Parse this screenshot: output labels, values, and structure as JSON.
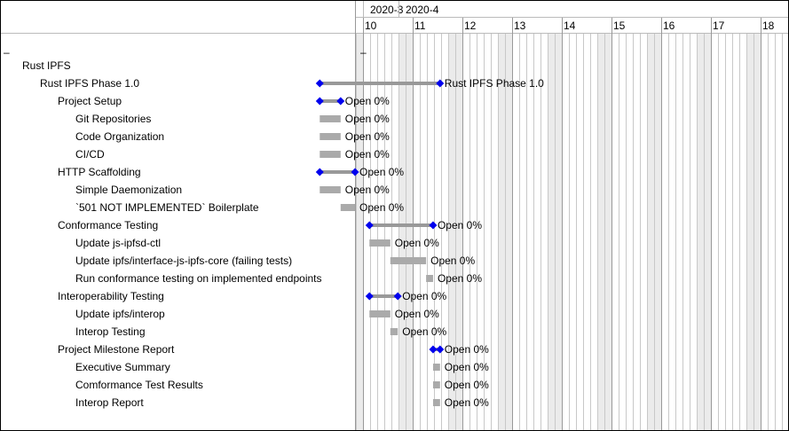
{
  "chart_data": {
    "type": "gantt",
    "months": [
      {
        "label": "2020-3",
        "start_day": 9
      },
      {
        "label": "2020-4",
        "start_day": 14
      }
    ],
    "week_labels": [
      "10",
      "11",
      "12",
      "13",
      "14",
      "15",
      "16",
      "17",
      "18"
    ],
    "tree_collapse_marks": {
      "left": "–",
      "chart": "–"
    },
    "tasks": [
      {
        "name": "Rust IPFS",
        "level": 0,
        "kind": "group"
      },
      {
        "name": "Rust IPFS Phase 1.0",
        "level": 1,
        "kind": "summary",
        "start": 9.13,
        "end": 11.55,
        "label": "Rust IPFS Phase 1.0"
      },
      {
        "name": "Project Setup",
        "level": 2,
        "kind": "summary",
        "start": 9.13,
        "end": 9.55,
        "label": "Open 0%"
      },
      {
        "name": "Git Repositories",
        "level": 3,
        "kind": "task",
        "start": 9.13,
        "end": 9.55,
        "label": "Open 0%"
      },
      {
        "name": "Code Organization",
        "level": 3,
        "kind": "task",
        "start": 9.13,
        "end": 9.55,
        "label": "Open 0%"
      },
      {
        "name": "CI/CD",
        "level": 3,
        "kind": "task",
        "start": 9.13,
        "end": 9.55,
        "label": "Open 0%"
      },
      {
        "name": "HTTP Scaffolding",
        "level": 2,
        "kind": "summary",
        "start": 9.13,
        "end": 9.84,
        "label": "Open 0%"
      },
      {
        "name": "Simple Daemonization",
        "level": 3,
        "kind": "task",
        "start": 9.13,
        "end": 9.55,
        "label": "Open 0%"
      },
      {
        "name": "`501 NOT IMPLEMENTED` Boilerplate",
        "level": 3,
        "kind": "task",
        "start": 9.55,
        "end": 9.84,
        "label": "Open 0%"
      },
      {
        "name": "Conformance Testing",
        "level": 2,
        "kind": "summary",
        "start": 10.13,
        "end": 11.41,
        "label": "Open 0%"
      },
      {
        "name": "Update js-ipfsd-ctl",
        "level": 3,
        "kind": "task",
        "start": 10.13,
        "end": 10.55,
        "label": "Open 0%"
      },
      {
        "name": "Update ipfs/interface-js-ipfs-core (failing tests)",
        "level": 3,
        "kind": "task",
        "start": 10.55,
        "end": 11.27,
        "label": "Open 0%"
      },
      {
        "name": "Run conformance testing on implemented endpoints",
        "level": 3,
        "kind": "task",
        "start": 11.27,
        "end": 11.41,
        "label": "Open 0%"
      },
      {
        "name": "Interoperability Testing",
        "level": 2,
        "kind": "summary",
        "start": 10.13,
        "end": 10.7,
        "label": "Open 0%"
      },
      {
        "name": "Update ipfs/interop",
        "level": 3,
        "kind": "task",
        "start": 10.13,
        "end": 10.55,
        "label": "Open 0%"
      },
      {
        "name": "Interop Testing",
        "level": 3,
        "kind": "task",
        "start": 10.55,
        "end": 10.7,
        "label": "Open 0%"
      },
      {
        "name": "Project Milestone Report",
        "level": 2,
        "kind": "summary",
        "start": 11.41,
        "end": 11.55,
        "label": "Open 0%"
      },
      {
        "name": "Executive Summary",
        "level": 3,
        "kind": "task",
        "start": 11.41,
        "end": 11.55,
        "label": "Open 0%"
      },
      {
        "name": "Comformance Test Results",
        "level": 3,
        "kind": "task",
        "start": 11.41,
        "end": 11.55,
        "label": "Open 0%"
      },
      {
        "name": "Interop Report",
        "level": 3,
        "kind": "task",
        "start": 11.41,
        "end": 11.55,
        "label": "Open 0%"
      }
    ],
    "colors": {
      "task_bar": "#aaaaaa",
      "summary_bar": "#999999",
      "milestone": "#0000ee",
      "weekend_shade": "#ebebeb",
      "grid_line": "#c8c8c8",
      "week_line": "#999999"
    }
  }
}
